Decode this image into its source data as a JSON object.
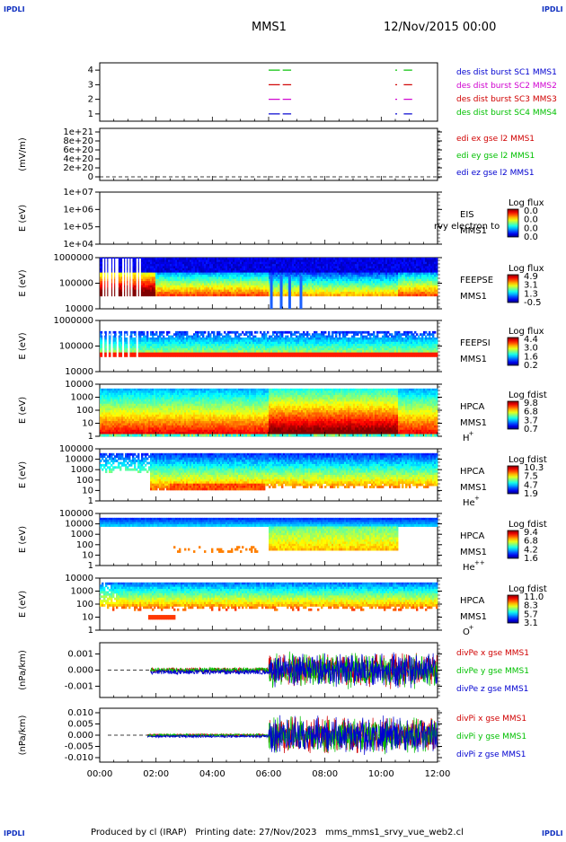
{
  "header": {
    "logo_left": "IPDLI",
    "logo_right": "IPDLI",
    "title": "MMS1",
    "date": "12/Nov/2015 00:00"
  },
  "footer": {
    "logo_left": "IPDLI",
    "logo_right": "IPDLI",
    "credit": "Produced by cl (IRAP)   Printing date: 27/Nov/2023   mms_mms1_srvy_vue_web2.cl"
  },
  "colors": {
    "red": "#d00000",
    "green": "#00c000",
    "blue": "#0000d0",
    "magenta": "#d000d0",
    "logo": "#1030c0"
  },
  "chart_data": [
    {
      "id": "burst",
      "type": "line",
      "ylabel": "",
      "yticks": [
        "1",
        "2",
        "3",
        "4"
      ],
      "yrange": [
        0.5,
        4.5
      ],
      "series": [
        {
          "name": "des dist burst SC1 MMS1",
          "color": "#0000d0",
          "level": 1,
          "intervals": [
            [
              6.0,
              6.4
            ],
            [
              6.5,
              6.8
            ],
            [
              10.5,
              10.6
            ],
            [
              10.8,
              11.1
            ]
          ]
        },
        {
          "name": "des dist burst SC2 MMS2",
          "color": "#d000d0",
          "level": 2,
          "intervals": [
            [
              6.0,
              6.4
            ],
            [
              6.5,
              6.8
            ],
            [
              10.5,
              10.6
            ],
            [
              10.8,
              11.1
            ]
          ]
        },
        {
          "name": "des dist burst SC3 MMS3",
          "color": "#d00000",
          "level": 3,
          "intervals": [
            [
              6.0,
              6.4
            ],
            [
              6.5,
              6.8
            ],
            [
              10.5,
              10.6
            ],
            [
              10.8,
              11.1
            ]
          ]
        },
        {
          "name": "des dist burst SC4 MMS4",
          "color": "#00c000",
          "level": 4,
          "intervals": [
            [
              6.0,
              6.4
            ],
            [
              6.5,
              6.8
            ],
            [
              10.5,
              10.6
            ],
            [
              10.8,
              11.1
            ]
          ]
        }
      ]
    },
    {
      "id": "edi",
      "type": "line",
      "ylabel": "(mV/m)",
      "yticks": [
        "0",
        "2e+20",
        "4e+20",
        "6e+20",
        "8e+20",
        "1e+21"
      ],
      "yrange": [
        0,
        1e+21
      ],
      "series": [
        {
          "name": "edi ex gse l2 MMS1",
          "color": "#d00000"
        },
        {
          "name": "edi ey gse l2 MMS1",
          "color": "#00c000"
        },
        {
          "name": "edi ez gse l2 MMS1",
          "color": "#0000d0"
        }
      ]
    },
    {
      "id": "eis",
      "type": "heatmap",
      "ylabel": "E (eV)",
      "yticks": [
        "1e+04",
        "1e+05",
        "1e+06",
        "1e+07"
      ],
      "yrange": [
        10000,
        10000000
      ],
      "label": "EIS",
      "label2": "MMS1",
      "overlay_text": "rvy electron to",
      "colorbar_title": "Log flux",
      "colorbar_ticks": [
        "0.0",
        "0.0",
        "0.0",
        "0.0"
      ],
      "data_segments": []
    },
    {
      "id": "feeps_e",
      "type": "heatmap",
      "ylabel": "E (eV)",
      "yticks": [
        "10000",
        "100000",
        "1000000"
      ],
      "yrange": [
        10000,
        1000000
      ],
      "label": "FEEPSE",
      "label2": "MMS1",
      "colorbar_title": "Log flux",
      "colorbar_ticks": [
        "4.9",
        "3.1",
        "1.3",
        "-0.5"
      ],
      "data_segments": [
        [
          0.0,
          12.0
        ]
      ],
      "gaps": [
        0.1,
        0.2,
        0.3,
        0.35,
        0.45,
        0.55,
        0.6,
        0.8,
        0.9,
        1.0,
        1.1,
        1.3,
        1.4
      ]
    },
    {
      "id": "feeps_i",
      "type": "heatmap",
      "ylabel": "E (eV)",
      "yticks": [
        "10000",
        "100000",
        "1000000"
      ],
      "yrange": [
        10000,
        1000000
      ],
      "label": "FEEPSI",
      "label2": "MMS1",
      "colorbar_title": "Log flux",
      "colorbar_ticks": [
        "4.4",
        "3.0",
        "1.6",
        "0.2"
      ],
      "data_segments": [
        [
          0.0,
          12.0
        ]
      ],
      "gaps": [
        0.1,
        0.25,
        0.4,
        0.6,
        0.8,
        1.0,
        1.3
      ]
    },
    {
      "id": "hpca_h",
      "type": "heatmap",
      "ylabel": "E (eV)",
      "yticks": [
        "1",
        "10",
        "100",
        "1000",
        "10000"
      ],
      "yrange": [
        1,
        30000
      ],
      "label": "HPCA",
      "label2": "MMS1",
      "species": "H",
      "charge": "+",
      "colorbar_title": "Log fdist",
      "colorbar_ticks": [
        "9.8",
        "6.8",
        "3.7",
        "0.7"
      ],
      "data_segments": [
        [
          0.0,
          12.0
        ]
      ]
    },
    {
      "id": "hpca_he",
      "type": "heatmap",
      "ylabel": "E (eV)",
      "yticks": [
        "1",
        "10",
        "100",
        "1000",
        "10000",
        "100000"
      ],
      "yrange": [
        1,
        100000
      ],
      "label": "HPCA",
      "label2": "MMS1",
      "species": "He",
      "charge": "+",
      "colorbar_title": "Log fdist",
      "colorbar_ticks": [
        "10.3",
        "7.5",
        "4.7",
        "1.9"
      ],
      "data_segments": [
        [
          0.0,
          12.0
        ]
      ]
    },
    {
      "id": "hpca_hepp",
      "type": "heatmap",
      "ylabel": "E (eV)",
      "yticks": [
        "1",
        "10",
        "100",
        "1000",
        "10000",
        "100000"
      ],
      "yrange": [
        1,
        100000
      ],
      "label": "HPCA",
      "label2": "MMS1",
      "species": "He",
      "charge": "++",
      "colorbar_title": "Log fdist",
      "colorbar_ticks": [
        "9.4",
        "6.8",
        "4.2",
        "1.6"
      ],
      "data_segments": [
        [
          0.0,
          12.0
        ]
      ]
    },
    {
      "id": "hpca_o",
      "type": "heatmap",
      "ylabel": "E (eV)",
      "yticks": [
        "1",
        "10",
        "100",
        "1000",
        "10000"
      ],
      "yrange": [
        1,
        30000
      ],
      "label": "HPCA",
      "label2": "MMS1",
      "species": "O",
      "charge": "+",
      "colorbar_title": "Log fdist",
      "colorbar_ticks": [
        "11.0",
        "8.3",
        "5.7",
        "3.1"
      ],
      "data_segments": [
        [
          0.0,
          12.0
        ]
      ]
    },
    {
      "id": "divpe",
      "type": "line",
      "ylabel": "(nPa/km)",
      "yticks": [
        "-0.001",
        "0.000",
        "0.001"
      ],
      "yrange": [
        -0.0017,
        0.0017
      ],
      "series": [
        {
          "name": "divPe x gse MMS1",
          "color": "#d00000"
        },
        {
          "name": "divPe y gse MMS1",
          "color": "#00c000"
        },
        {
          "name": "divPe z gse MMS1",
          "color": "#0000d0"
        }
      ],
      "data_start": 1.8,
      "quiet_end": 6.0,
      "quiet_amp": 0.00015,
      "active_amp": 0.0012
    },
    {
      "id": "divpi",
      "type": "line",
      "ylabel": "(nPa/km)",
      "yticks": [
        "-0.010",
        "-0.005",
        "0.000",
        "0.005",
        "0.010"
      ],
      "yrange": [
        -0.012,
        0.012
      ],
      "series": [
        {
          "name": "divPi x gse MMS1",
          "color": "#d00000"
        },
        {
          "name": "divPi y gse MMS1",
          "color": "#00c000"
        },
        {
          "name": "divPi z gse MMS1",
          "color": "#0000d0"
        }
      ],
      "data_start": 1.7,
      "quiet_end": 6.0,
      "quiet_amp": 0.0006,
      "active_amp": 0.009
    }
  ],
  "time_axis": {
    "start_hour": 0,
    "end_hour": 12,
    "tick_labels": [
      "00:00",
      "02:00",
      "04:00",
      "06:00",
      "08:00",
      "10:00",
      "12:00"
    ]
  }
}
